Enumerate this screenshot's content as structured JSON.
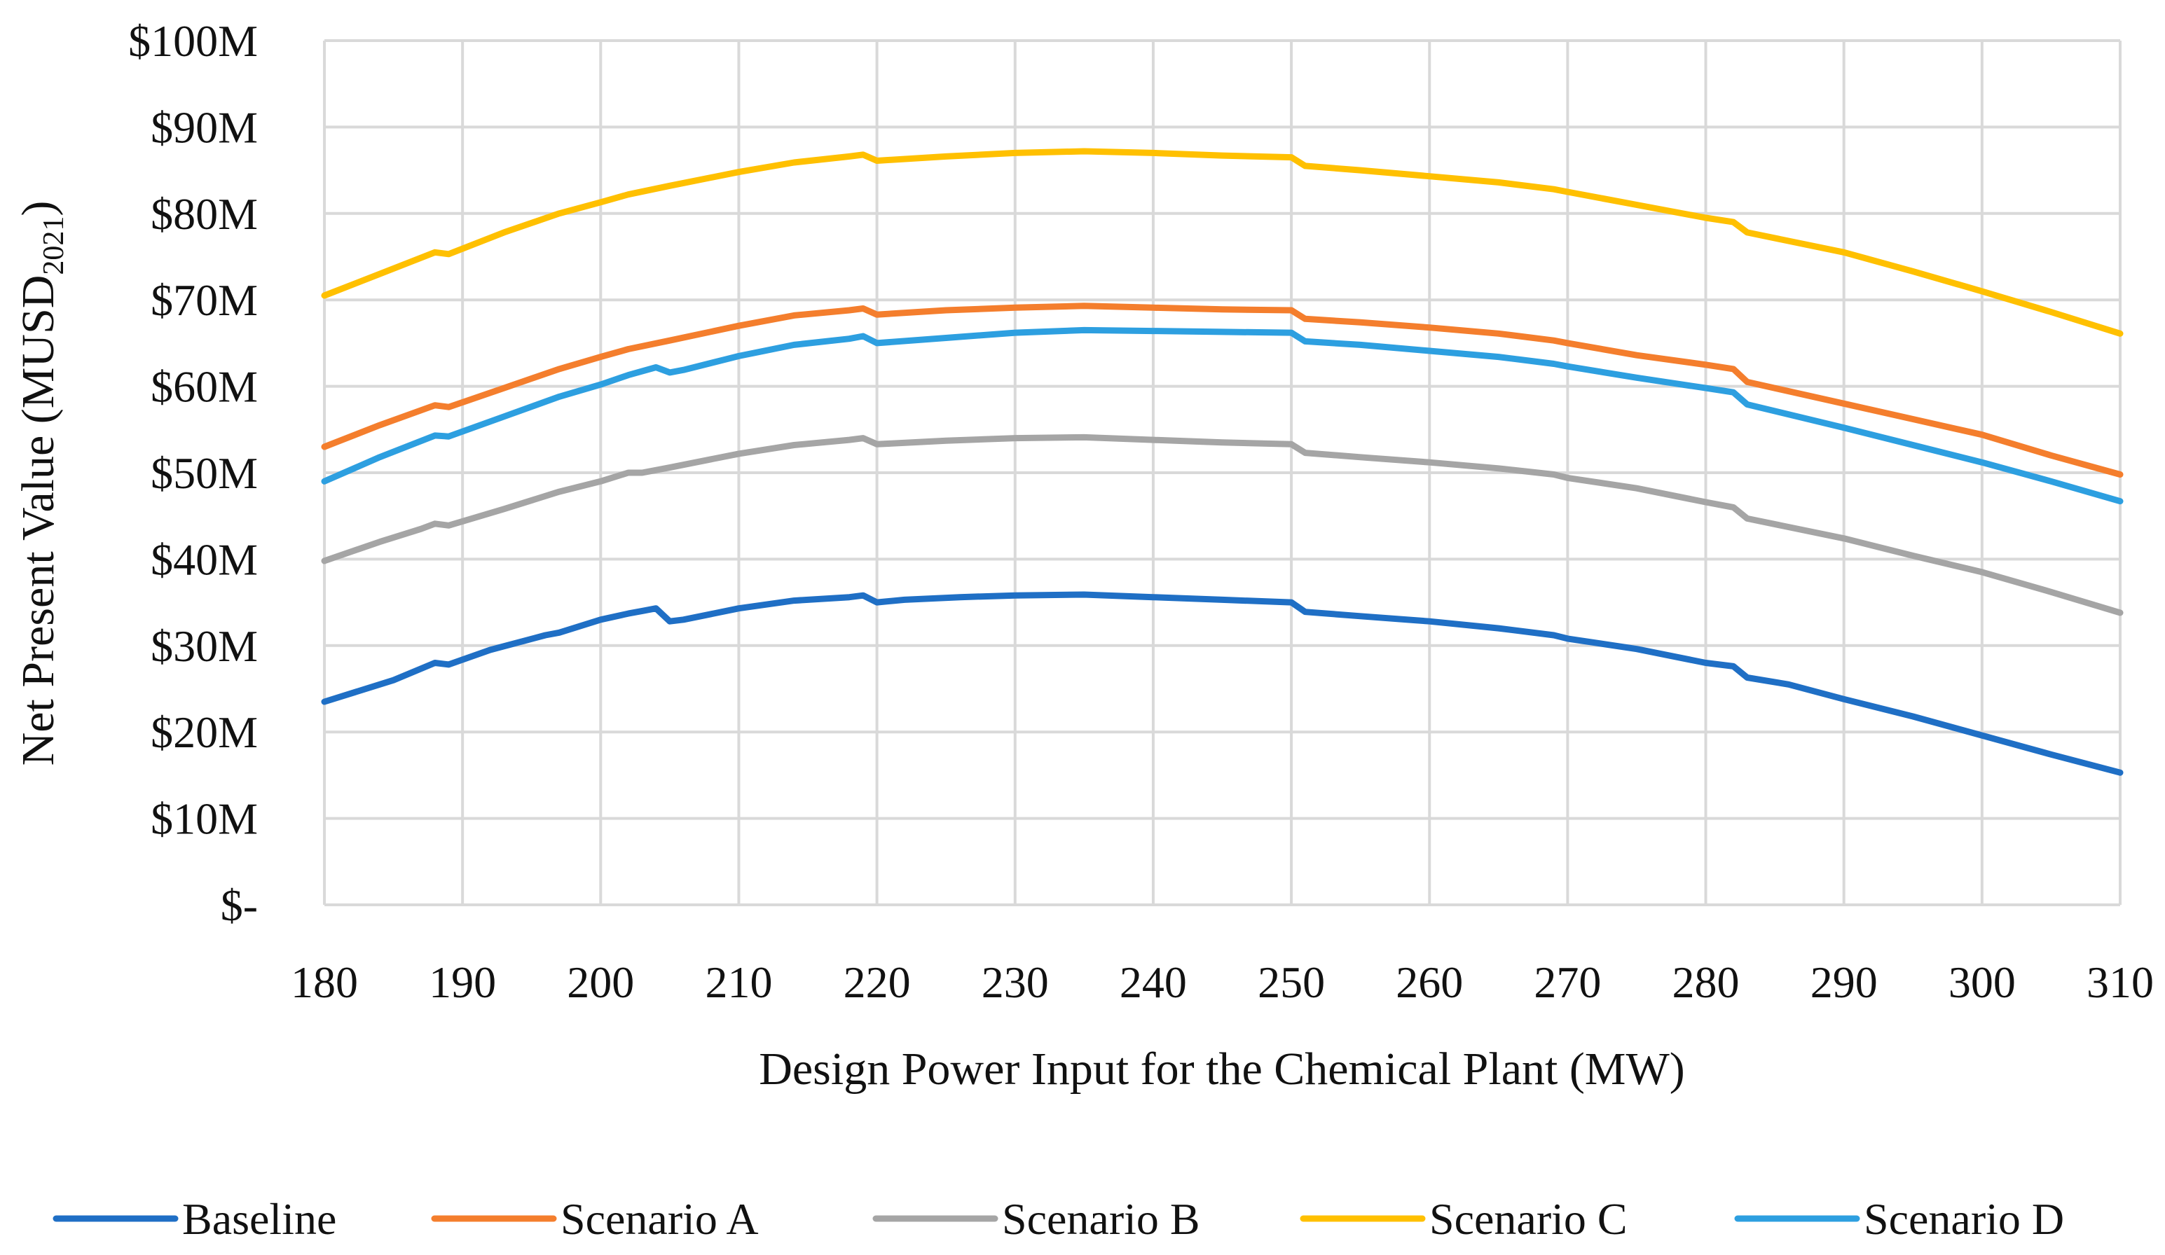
{
  "chart_data": {
    "type": "line",
    "xlabel": "Design Power Input for the Chemical Plant (MW)",
    "ylabel": {
      "main": "Net Present Value (MUSD",
      "subscript": "2021",
      "close": ")"
    },
    "xlim": [
      180,
      310
    ],
    "ylim": [
      0,
      100
    ],
    "x_ticks": [
      180,
      190,
      200,
      210,
      220,
      230,
      240,
      250,
      260,
      270,
      280,
      290,
      300,
      310
    ],
    "y_ticks": [
      {
        "value": 0,
        "label": "$-"
      },
      {
        "value": 10,
        "label": "$10M"
      },
      {
        "value": 20,
        "label": "$20M"
      },
      {
        "value": 30,
        "label": "$30M"
      },
      {
        "value": 40,
        "label": "$40M"
      },
      {
        "value": 50,
        "label": "$50M"
      },
      {
        "value": 60,
        "label": "$60M"
      },
      {
        "value": 70,
        "label": "$70M"
      },
      {
        "value": 80,
        "label": "$80M"
      },
      {
        "value": 90,
        "label": "$90M"
      },
      {
        "value": 100,
        "label": "$100M"
      }
    ],
    "grid": true,
    "legend_position": "bottom",
    "series": [
      {
        "name": "Baseline",
        "color": "#1f6fc5",
        "points": [
          [
            180,
            23.5
          ],
          [
            185,
            26.0
          ],
          [
            188,
            28.0
          ],
          [
            189,
            27.8
          ],
          [
            192,
            29.5
          ],
          [
            196,
            31.2
          ],
          [
            197,
            31.5
          ],
          [
            200,
            33.0
          ],
          [
            202,
            33.7
          ],
          [
            203,
            34.0
          ],
          [
            204,
            34.3
          ],
          [
            205,
            32.8
          ],
          [
            206,
            33.0
          ],
          [
            210,
            34.3
          ],
          [
            214,
            35.2
          ],
          [
            218,
            35.6
          ],
          [
            219,
            35.8
          ],
          [
            220,
            35.0
          ],
          [
            222,
            35.3
          ],
          [
            226,
            35.6
          ],
          [
            230,
            35.8
          ],
          [
            235,
            35.9
          ],
          [
            240,
            35.6
          ],
          [
            245,
            35.3
          ],
          [
            250,
            35.0
          ],
          [
            251,
            33.9
          ],
          [
            255,
            33.4
          ],
          [
            260,
            32.8
          ],
          [
            265,
            32.0
          ],
          [
            269,
            31.2
          ],
          [
            270,
            30.8
          ],
          [
            275,
            29.6
          ],
          [
            280,
            28.0
          ],
          [
            282,
            27.6
          ],
          [
            283,
            26.3
          ],
          [
            286,
            25.5
          ],
          [
            290,
            23.8
          ],
          [
            295,
            21.8
          ],
          [
            300,
            19.6
          ],
          [
            305,
            17.4
          ],
          [
            310,
            15.3
          ]
        ]
      },
      {
        "name": "Scenario A",
        "color": "#f47e2d",
        "points": [
          [
            180,
            53.0
          ],
          [
            184,
            55.5
          ],
          [
            188,
            57.8
          ],
          [
            189,
            57.6
          ],
          [
            193,
            59.8
          ],
          [
            197,
            62.0
          ],
          [
            200,
            63.4
          ],
          [
            202,
            64.3
          ],
          [
            205,
            65.3
          ],
          [
            210,
            67.0
          ],
          [
            214,
            68.2
          ],
          [
            218,
            68.8
          ],
          [
            219,
            69.0
          ],
          [
            220,
            68.3
          ],
          [
            225,
            68.8
          ],
          [
            230,
            69.1
          ],
          [
            235,
            69.3
          ],
          [
            240,
            69.1
          ],
          [
            245,
            68.9
          ],
          [
            250,
            68.8
          ],
          [
            251,
            67.8
          ],
          [
            255,
            67.4
          ],
          [
            260,
            66.8
          ],
          [
            265,
            66.1
          ],
          [
            269,
            65.3
          ],
          [
            270,
            65.0
          ],
          [
            275,
            63.6
          ],
          [
            280,
            62.5
          ],
          [
            282,
            62.0
          ],
          [
            283,
            60.5
          ],
          [
            290,
            58.0
          ],
          [
            295,
            56.2
          ],
          [
            300,
            54.4
          ],
          [
            305,
            52.0
          ],
          [
            310,
            49.8
          ]
        ]
      },
      {
        "name": "Scenario B",
        "color": "#a5a5a5",
        "points": [
          [
            180,
            39.8
          ],
          [
            184,
            42.0
          ],
          [
            187,
            43.5
          ],
          [
            188,
            44.1
          ],
          [
            189,
            43.9
          ],
          [
            193,
            45.8
          ],
          [
            197,
            47.8
          ],
          [
            200,
            49.0
          ],
          [
            202,
            50.0
          ],
          [
            203,
            50.0
          ],
          [
            205,
            50.6
          ],
          [
            210,
            52.2
          ],
          [
            214,
            53.2
          ],
          [
            218,
            53.8
          ],
          [
            219,
            54.0
          ],
          [
            220,
            53.3
          ],
          [
            225,
            53.7
          ],
          [
            230,
            54.0
          ],
          [
            235,
            54.1
          ],
          [
            240,
            53.8
          ],
          [
            245,
            53.5
          ],
          [
            250,
            53.3
          ],
          [
            251,
            52.3
          ],
          [
            255,
            51.8
          ],
          [
            260,
            51.2
          ],
          [
            265,
            50.5
          ],
          [
            269,
            49.8
          ],
          [
            270,
            49.4
          ],
          [
            275,
            48.2
          ],
          [
            280,
            46.6
          ],
          [
            282,
            46.0
          ],
          [
            283,
            44.7
          ],
          [
            290,
            42.4
          ],
          [
            295,
            40.4
          ],
          [
            300,
            38.5
          ],
          [
            305,
            36.2
          ],
          [
            310,
            33.8
          ]
        ]
      },
      {
        "name": "Scenario C",
        "color": "#ffc000",
        "points": [
          [
            180,
            70.5
          ],
          [
            184,
            73.0
          ],
          [
            188,
            75.5
          ],
          [
            189,
            75.3
          ],
          [
            193,
            77.8
          ],
          [
            197,
            80.0
          ],
          [
            200,
            81.3
          ],
          [
            202,
            82.2
          ],
          [
            205,
            83.2
          ],
          [
            210,
            84.8
          ],
          [
            214,
            85.9
          ],
          [
            218,
            86.6
          ],
          [
            219,
            86.8
          ],
          [
            220,
            86.1
          ],
          [
            225,
            86.6
          ],
          [
            230,
            87.0
          ],
          [
            235,
            87.2
          ],
          [
            240,
            87.0
          ],
          [
            245,
            86.7
          ],
          [
            250,
            86.5
          ],
          [
            251,
            85.5
          ],
          [
            255,
            85.0
          ],
          [
            260,
            84.3
          ],
          [
            265,
            83.6
          ],
          [
            269,
            82.8
          ],
          [
            270,
            82.5
          ],
          [
            275,
            81.0
          ],
          [
            280,
            79.5
          ],
          [
            282,
            79.0
          ],
          [
            283,
            77.8
          ],
          [
            290,
            75.5
          ],
          [
            295,
            73.3
          ],
          [
            300,
            71.0
          ],
          [
            305,
            68.6
          ],
          [
            310,
            66.1
          ]
        ]
      },
      {
        "name": "Scenario D",
        "color": "#2d9fe0",
        "points": [
          [
            180,
            49.0
          ],
          [
            184,
            51.8
          ],
          [
            188,
            54.3
          ],
          [
            189,
            54.2
          ],
          [
            193,
            56.5
          ],
          [
            197,
            58.8
          ],
          [
            200,
            60.2
          ],
          [
            202,
            61.3
          ],
          [
            204,
            62.2
          ],
          [
            205,
            61.6
          ],
          [
            206,
            61.9
          ],
          [
            210,
            63.5
          ],
          [
            214,
            64.8
          ],
          [
            218,
            65.5
          ],
          [
            219,
            65.8
          ],
          [
            220,
            65.0
          ],
          [
            225,
            65.6
          ],
          [
            230,
            66.2
          ],
          [
            235,
            66.5
          ],
          [
            240,
            66.4
          ],
          [
            245,
            66.3
          ],
          [
            250,
            66.2
          ],
          [
            251,
            65.2
          ],
          [
            255,
            64.8
          ],
          [
            260,
            64.1
          ],
          [
            265,
            63.4
          ],
          [
            269,
            62.6
          ],
          [
            270,
            62.3
          ],
          [
            275,
            61.0
          ],
          [
            280,
            59.8
          ],
          [
            282,
            59.3
          ],
          [
            283,
            57.9
          ],
          [
            290,
            55.2
          ],
          [
            295,
            53.2
          ],
          [
            300,
            51.2
          ],
          [
            305,
            49.0
          ],
          [
            310,
            46.7
          ]
        ]
      }
    ]
  }
}
